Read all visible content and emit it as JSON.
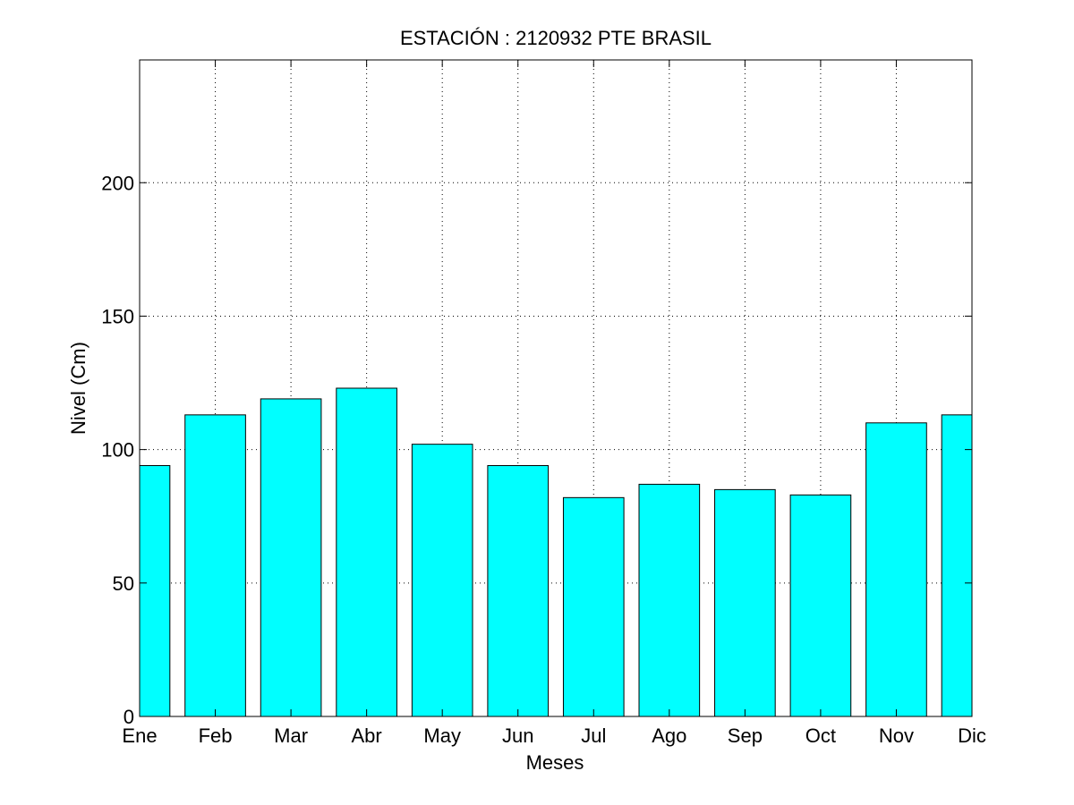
{
  "chart_data": {
    "type": "bar",
    "title": "ESTACIÓN :  2120932  PTE BRASIL",
    "xlabel": "Meses",
    "ylabel": "Nivel (Cm)",
    "categories": [
      "Ene",
      "Feb",
      "Mar",
      "Abr",
      "May",
      "Jun",
      "Jul",
      "Ago",
      "Sep",
      "Oct",
      "Nov",
      "Dic"
    ],
    "values": [
      94,
      113,
      119,
      123,
      102,
      94,
      82,
      87,
      85,
      83,
      110,
      113
    ],
    "ylim": [
      0,
      246
    ],
    "yticks": [
      0,
      50,
      100,
      150,
      200
    ],
    "grid": true,
    "bar_color": "#00ffff",
    "edge_color": "#000000"
  }
}
